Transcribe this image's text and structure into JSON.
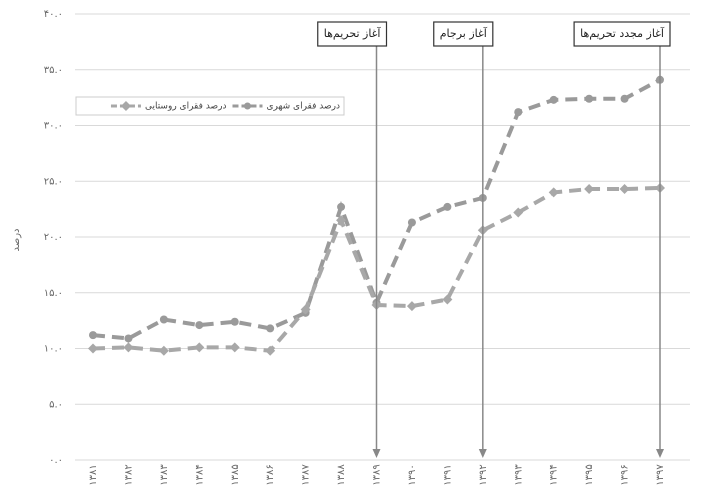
{
  "chart_data": {
    "type": "line",
    "y_label": "درصد",
    "categories": [
      "۱۳۸۱",
      "۱۳۸۲",
      "۱۳۸۳",
      "۱۳۸۴",
      "۱۳۸۵",
      "۱۳۸۶",
      "۱۳۸۷",
      "۱۳۸۸",
      "۱۳۸۹",
      "۱۳۹۰",
      "۱۳۹۱",
      "۱۳۹۲",
      "۱۳۹۳",
      "۱۳۹۴",
      "۱۳۹۵",
      "۱۳۹۶",
      "۱۳۹۷"
    ],
    "series": [
      {
        "name": "درصد فقرای شهری",
        "color": "#9a9a9a",
        "marker": "circle",
        "values": [
          11.2,
          10.9,
          12.6,
          12.1,
          12.4,
          11.8,
          13.2,
          22.7,
          14.1,
          21.3,
          22.7,
          23.5,
          31.2,
          32.3,
          32.4,
          32.4,
          34.1
        ]
      },
      {
        "name": "درصد فقرای روستایی",
        "color": "#a8a8a8",
        "marker": "diamond",
        "values": [
          10.0,
          10.1,
          9.8,
          10.1,
          10.1,
          9.8,
          13.5,
          21.5,
          13.9,
          13.8,
          14.4,
          20.6,
          22.2,
          24.0,
          24.3,
          24.3,
          24.4
        ]
      }
    ],
    "ylim": [
      0,
      40
    ],
    "yticks": [
      {
        "value": 0,
        "label": "۰.۰"
      },
      {
        "value": 5,
        "label": "۵.۰"
      },
      {
        "value": 10,
        "label": "۱۰.۰"
      },
      {
        "value": 15,
        "label": "۱۵.۰"
      },
      {
        "value": 20,
        "label": "۲۰.۰"
      },
      {
        "value": 25,
        "label": "۲۵.۰"
      },
      {
        "value": 30,
        "label": "۳۰.۰"
      },
      {
        "value": 35,
        "label": "۳۵.۰"
      },
      {
        "value": 40,
        "label": "۴۰.۰"
      }
    ],
    "grid": true,
    "legend": "upper-left",
    "annotations": [
      {
        "text": "آغاز تحریم‌ها",
        "category": "۱۳۸۹"
      },
      {
        "text": "آغاز برجام",
        "category": "۱۳۹۲"
      },
      {
        "text": "آغاز مجدد تحریم‌ها",
        "category": "۱۳۹۷"
      }
    ]
  }
}
